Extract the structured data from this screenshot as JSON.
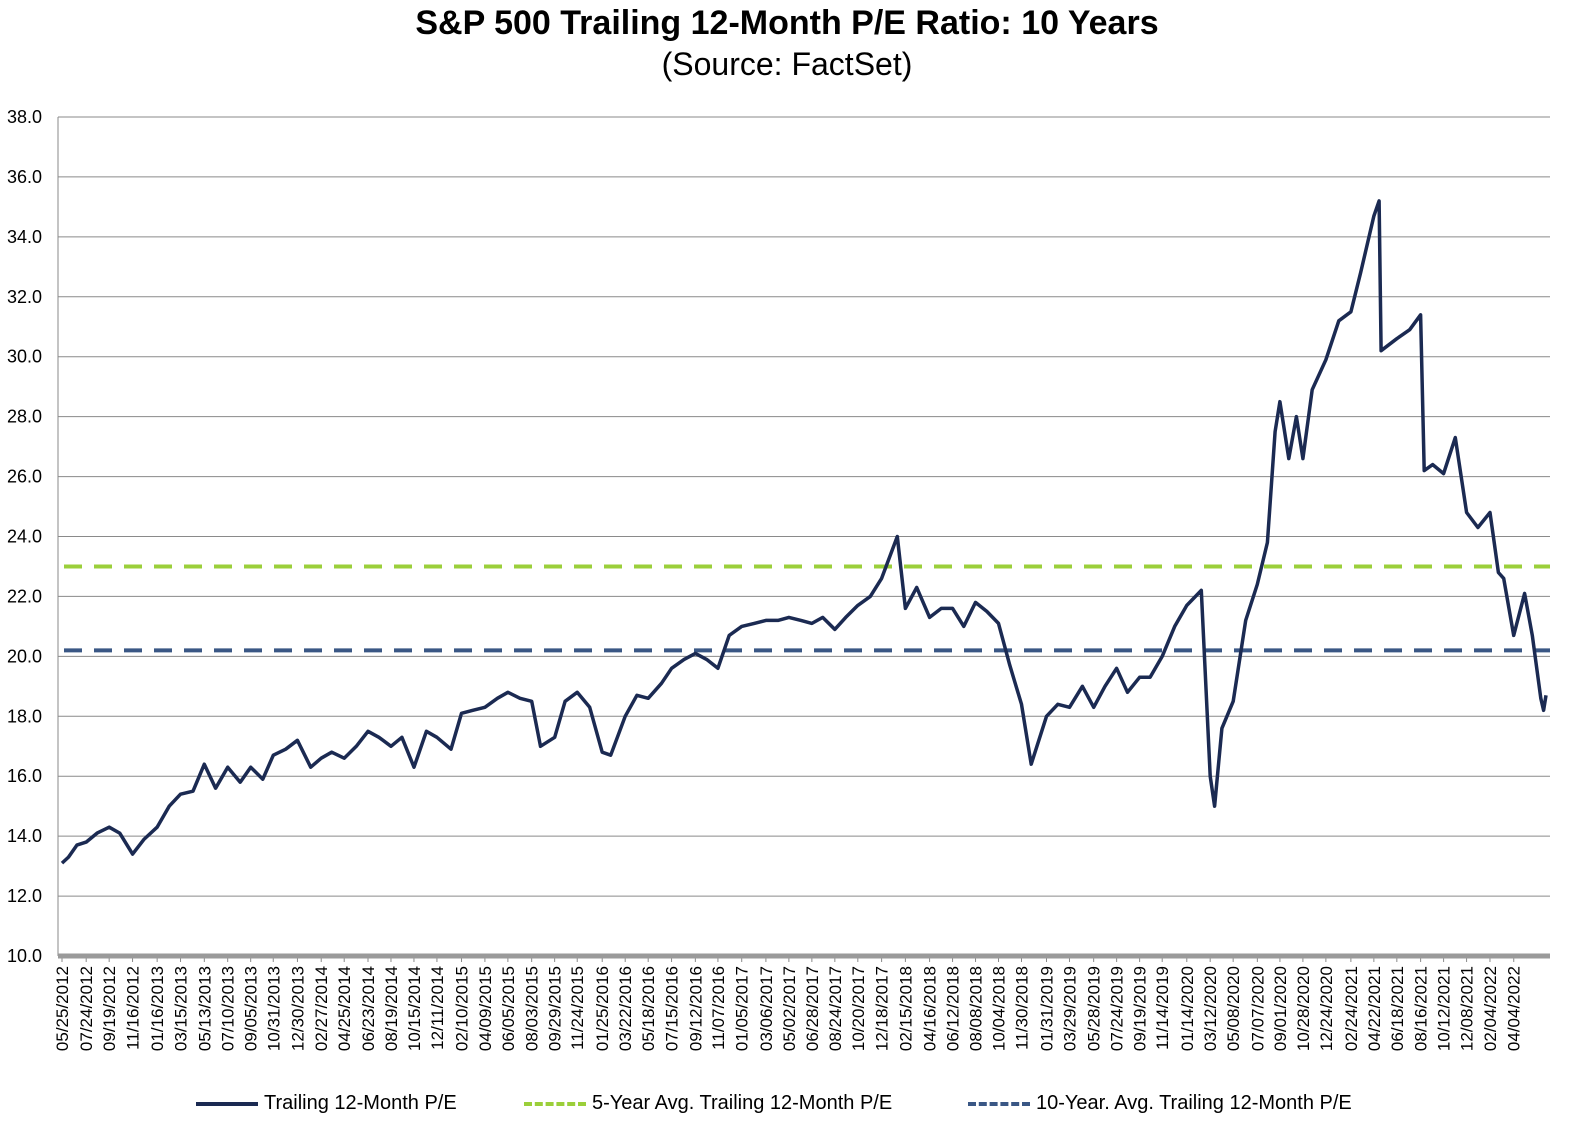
{
  "chart_data": {
    "type": "line",
    "title": "S&P 500 Trailing 12-Month P/E Ratio: 10 Years",
    "subtitle": "(Source: FactSet)",
    "xlabel": "",
    "ylabel": "",
    "ylim": [
      10,
      38
    ],
    "yticks": [
      "38.0",
      "36.0",
      "34.0",
      "32.0",
      "30.0",
      "28.0",
      "26.0",
      "24.0",
      "22.0",
      "20.0",
      "18.0",
      "16.0",
      "14.0",
      "12.0",
      "10.0"
    ],
    "grid": true,
    "legend_position": "bottom",
    "x_tick_labels": [
      "05/25/2012",
      "07/24/2012",
      "09/19/2012",
      "11/16/2012",
      "01/16/2013",
      "03/15/2013",
      "05/13/2013",
      "07/10/2013",
      "09/05/2013",
      "10/31/2013",
      "12/30/2013",
      "02/27/2014",
      "04/25/2014",
      "06/23/2014",
      "08/19/2014",
      "10/15/2014",
      "12/11/2014",
      "02/10/2015",
      "04/09/2015",
      "06/05/2015",
      "08/03/2015",
      "09/29/2015",
      "11/24/2015",
      "01/25/2016",
      "03/22/2016",
      "05/18/2016",
      "07/15/2016",
      "09/12/2016",
      "11/07/2016",
      "01/05/2017",
      "03/06/2017",
      "05/02/2017",
      "06/28/2017",
      "08/24/2017",
      "10/20/2017",
      "12/18/2017",
      "02/15/2018",
      "04/16/2018",
      "06/12/2018",
      "08/08/2018",
      "10/04/2018",
      "11/30/2018",
      "01/31/2019",
      "03/29/2019",
      "05/28/2019",
      "07/24/2019",
      "09/19/2019",
      "11/14/2019",
      "01/14/2020",
      "03/12/2020",
      "05/08/2020",
      "07/07/2020",
      "09/01/2020",
      "10/28/2020",
      "12/24/2020",
      "02/24/2021",
      "04/22/2021",
      "06/18/2021",
      "08/16/2021",
      "10/12/2021",
      "12/08/2021",
      "02/04/2022",
      "04/04/2022"
    ],
    "series": [
      {
        "name": "Trailing 12-Month P/E",
        "color": "#1b2a52",
        "style": "solid",
        "values": [
          [
            "05/25/2012",
            13.1
          ],
          [
            "06/10/2012",
            13.3
          ],
          [
            "07/01/2012",
            13.7
          ],
          [
            "07/24/2012",
            13.8
          ],
          [
            "08/20/2012",
            14.1
          ],
          [
            "09/19/2012",
            14.3
          ],
          [
            "10/15/2012",
            14.1
          ],
          [
            "11/16/2012",
            13.4
          ],
          [
            "12/15/2012",
            13.9
          ],
          [
            "01/16/2013",
            14.3
          ],
          [
            "02/15/2013",
            15.0
          ],
          [
            "03/15/2013",
            15.4
          ],
          [
            "04/15/2013",
            15.5
          ],
          [
            "05/13/2013",
            16.4
          ],
          [
            "06/10/2013",
            15.6
          ],
          [
            "07/10/2013",
            16.3
          ],
          [
            "08/10/2013",
            15.8
          ],
          [
            "09/05/2013",
            16.3
          ],
          [
            "10/05/2013",
            15.9
          ],
          [
            "10/31/2013",
            16.7
          ],
          [
            "12/01/2013",
            16.9
          ],
          [
            "12/30/2013",
            17.2
          ],
          [
            "02/01/2014",
            16.3
          ],
          [
            "02/27/2014",
            16.6
          ],
          [
            "03/25/2014",
            16.8
          ],
          [
            "04/25/2014",
            16.6
          ],
          [
            "05/25/2014",
            17.0
          ],
          [
            "06/23/2014",
            17.5
          ],
          [
            "07/20/2014",
            17.3
          ],
          [
            "08/19/2014",
            17.0
          ],
          [
            "09/15/2014",
            17.3
          ],
          [
            "10/15/2014",
            16.3
          ],
          [
            "11/15/2014",
            17.5
          ],
          [
            "12/11/2014",
            17.3
          ],
          [
            "01/15/2015",
            16.9
          ],
          [
            "02/10/2015",
            18.1
          ],
          [
            "03/10/2015",
            18.2
          ],
          [
            "04/09/2015",
            18.3
          ],
          [
            "05/10/2015",
            18.6
          ],
          [
            "06/05/2015",
            18.8
          ],
          [
            "07/05/2015",
            18.6
          ],
          [
            "08/03/2015",
            18.5
          ],
          [
            "08/25/2015",
            17.0
          ],
          [
            "09/29/2015",
            17.3
          ],
          [
            "10/25/2015",
            18.5
          ],
          [
            "11/24/2015",
            18.8
          ],
          [
            "12/25/2015",
            18.3
          ],
          [
            "01/25/2016",
            16.8
          ],
          [
            "02/15/2016",
            16.7
          ],
          [
            "03/22/2016",
            18.0
          ],
          [
            "04/20/2016",
            18.7
          ],
          [
            "05/18/2016",
            18.6
          ],
          [
            "06/20/2016",
            19.1
          ],
          [
            "07/15/2016",
            19.6
          ],
          [
            "08/15/2016",
            19.9
          ],
          [
            "09/12/2016",
            20.1
          ],
          [
            "10/10/2016",
            19.9
          ],
          [
            "11/07/2016",
            19.6
          ],
          [
            "12/05/2016",
            20.7
          ],
          [
            "01/05/2017",
            21.0
          ],
          [
            "02/05/2017",
            21.1
          ],
          [
            "03/06/2017",
            21.2
          ],
          [
            "04/05/2017",
            21.2
          ],
          [
            "05/02/2017",
            21.3
          ],
          [
            "06/01/2017",
            21.2
          ],
          [
            "06/28/2017",
            21.1
          ],
          [
            "07/25/2017",
            21.3
          ],
          [
            "08/24/2017",
            20.9
          ],
          [
            "09/20/2017",
            21.3
          ],
          [
            "10/20/2017",
            21.7
          ],
          [
            "11/20/2017",
            22.0
          ],
          [
            "12/18/2017",
            22.6
          ],
          [
            "01/26/2018",
            24.0
          ],
          [
            "02/15/2018",
            21.6
          ],
          [
            "03/15/2018",
            22.3
          ],
          [
            "04/16/2018",
            21.3
          ],
          [
            "05/15/2018",
            21.6
          ],
          [
            "06/12/2018",
            21.6
          ],
          [
            "07/10/2018",
            21.0
          ],
          [
            "08/08/2018",
            21.8
          ],
          [
            "09/05/2018",
            21.5
          ],
          [
            "10/04/2018",
            21.1
          ],
          [
            "11/01/2018",
            19.7
          ],
          [
            "11/30/2018",
            18.4
          ],
          [
            "12/24/2018",
            16.4
          ],
          [
            "01/31/2019",
            18.0
          ],
          [
            "02/28/2019",
            18.4
          ],
          [
            "03/29/2019",
            18.3
          ],
          [
            "04/30/2019",
            19.0
          ],
          [
            "05/28/2019",
            18.3
          ],
          [
            "06/25/2019",
            19.0
          ],
          [
            "07/24/2019",
            19.6
          ],
          [
            "08/20/2019",
            18.8
          ],
          [
            "09/19/2019",
            19.3
          ],
          [
            "10/15/2019",
            19.3
          ],
          [
            "11/14/2019",
            20.0
          ],
          [
            "12/15/2019",
            21.0
          ],
          [
            "01/14/2020",
            21.7
          ],
          [
            "02/19/2020",
            22.2
          ],
          [
            "03/12/2020",
            16.0
          ],
          [
            "03/23/2020",
            15.0
          ],
          [
            "04/10/2020",
            17.6
          ],
          [
            "05/08/2020",
            18.5
          ],
          [
            "06/08/2020",
            21.2
          ],
          [
            "07/07/2020",
            22.4
          ],
          [
            "08/01/2020",
            23.8
          ],
          [
            "08/20/2020",
            27.5
          ],
          [
            "09/01/2020",
            28.5
          ],
          [
            "09/23/2020",
            26.6
          ],
          [
            "10/12/2020",
            28.0
          ],
          [
            "10/28/2020",
            26.6
          ],
          [
            "11/20/2020",
            28.9
          ],
          [
            "12/24/2020",
            29.9
          ],
          [
            "01/25/2021",
            31.2
          ],
          [
            "02/24/2021",
            31.5
          ],
          [
            "03/20/2021",
            32.8
          ],
          [
            "04/22/2021",
            34.7
          ],
          [
            "05/05/2021",
            35.2
          ],
          [
            "05/10/2021",
            30.2
          ],
          [
            "06/18/2021",
            30.6
          ],
          [
            "07/20/2021",
            30.9
          ],
          [
            "08/16/2021",
            31.4
          ],
          [
            "08/25/2021",
            26.2
          ],
          [
            "09/15/2021",
            26.4
          ],
          [
            "10/12/2021",
            26.1
          ],
          [
            "11/10/2021",
            27.3
          ],
          [
            "12/08/2021",
            24.8
          ],
          [
            "01/05/2022",
            24.3
          ],
          [
            "02/04/2022",
            24.8
          ],
          [
            "02/25/2022",
            22.8
          ],
          [
            "03/10/2022",
            22.6
          ],
          [
            "04/04/2022",
            20.7
          ],
          [
            "05/01/2022",
            22.1
          ],
          [
            "05/20/2022",
            20.7
          ],
          [
            "06/10/2022",
            18.6
          ],
          [
            "06/17/2022",
            18.2
          ],
          [
            "06/23/2022",
            18.7
          ]
        ]
      },
      {
        "name": "5-Year Avg. Trailing 12-Month P/E",
        "color": "#9bcf3a",
        "style": "dashed",
        "value": 23.0
      },
      {
        "name": "10-Year. Avg. Trailing 12-Month P/E",
        "color": "#3a5785",
        "style": "dashed",
        "value": 20.2
      }
    ]
  }
}
